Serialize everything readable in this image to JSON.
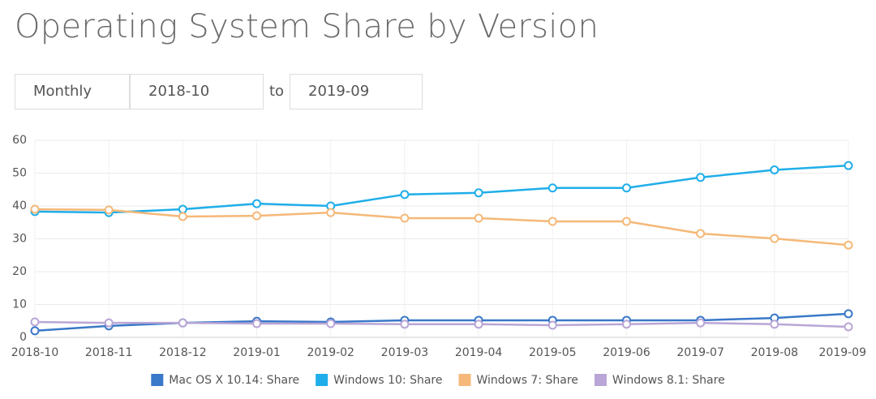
{
  "controls": {
    "period": "Monthly",
    "from": "2018-10",
    "separator": "to",
    "to": "2019-09"
  },
  "chart_data": {
    "type": "line",
    "title": "Operating System Share by Version",
    "categories": [
      "2018-10",
      "2018-11",
      "2018-12",
      "2019-01",
      "2019-02",
      "2019-03",
      "2019-04",
      "2019-05",
      "2019-06",
      "2019-07",
      "2019-08",
      "2019-09"
    ],
    "series": [
      {
        "name": "Mac OS X 10.14: Share",
        "color": "#3a78c9",
        "values": [
          2.0,
          3.5,
          4.4,
          4.9,
          4.7,
          5.2,
          5.2,
          5.2,
          5.2,
          5.2,
          5.9,
          7.2
        ]
      },
      {
        "name": "Windows 10: Share",
        "color": "#1faee9",
        "values": [
          38.3,
          38.0,
          39.0,
          40.7,
          40.0,
          43.5,
          44.0,
          45.5,
          45.5,
          48.7,
          51.0,
          52.3
        ]
      },
      {
        "name": "Windows 7: Share",
        "color": "#f5b878",
        "values": [
          39.0,
          38.8,
          36.8,
          37.0,
          38.0,
          36.3,
          36.3,
          35.3,
          35.3,
          31.6,
          30.1,
          28.1
        ]
      },
      {
        "name": "Windows 8.1: Share",
        "color": "#b9a6d6",
        "values": [
          4.7,
          4.4,
          4.4,
          4.2,
          4.2,
          4.0,
          4.0,
          3.7,
          4.0,
          4.4,
          4.0,
          3.2
        ]
      }
    ],
    "ylim": [
      0,
      60
    ],
    "yticks": [
      0,
      10,
      20,
      30,
      40,
      50,
      60
    ],
    "grid": true,
    "legend": "bottom"
  }
}
